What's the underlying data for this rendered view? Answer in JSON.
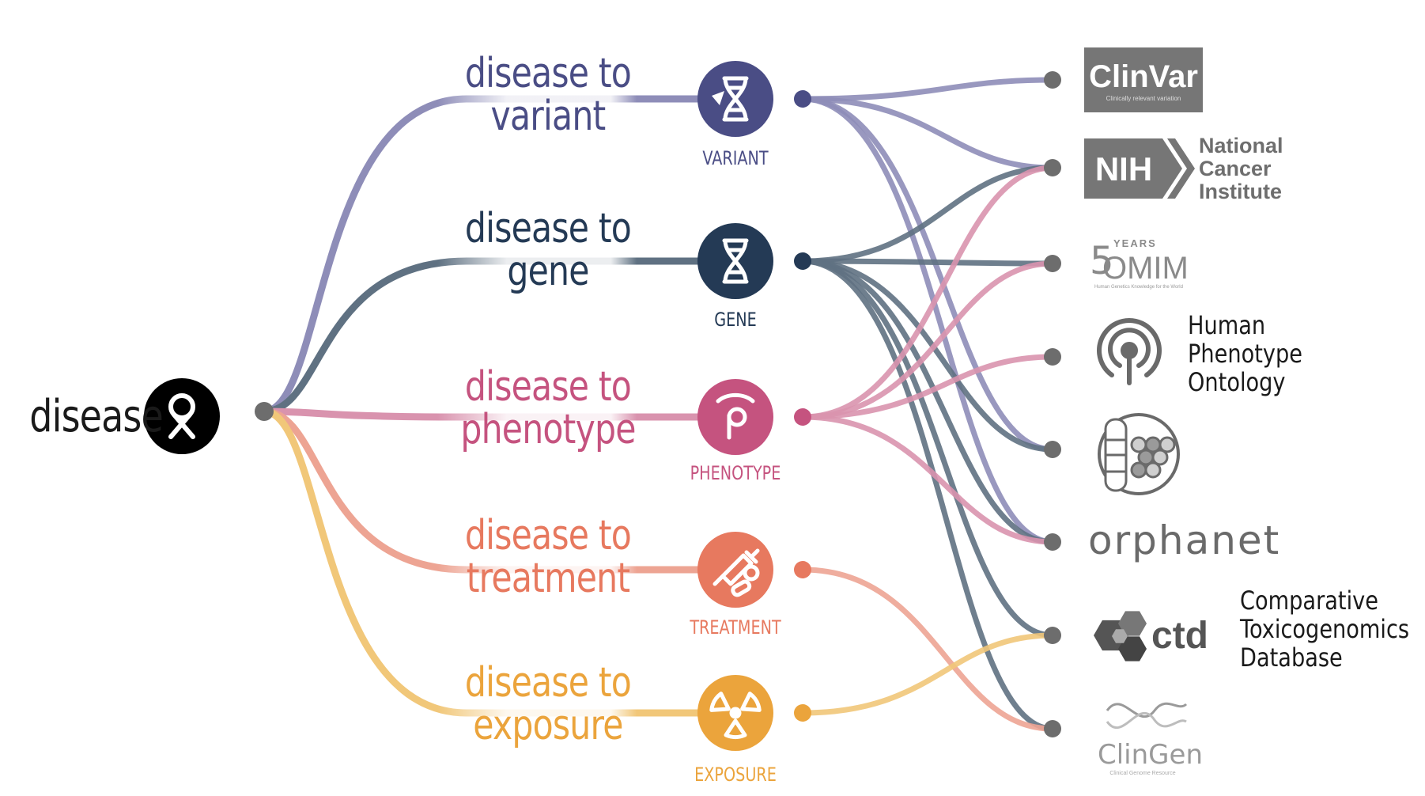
{
  "root": {
    "label": "disease",
    "icon": "awareness-ribbon-icon",
    "color": "#000000"
  },
  "categories": [
    {
      "key": "variant",
      "line1": "disease to",
      "line2": "variant",
      "sublabel": "VARIANT",
      "icon": "dna-cursor-icon",
      "color": "#4a4d85",
      "link_color": "#8e8db8"
    },
    {
      "key": "gene",
      "line1": "disease to",
      "line2": "gene",
      "sublabel": "GENE",
      "icon": "dna-icon",
      "color": "#243a55",
      "link_color": "#5f7182"
    },
    {
      "key": "phenotype",
      "line1": "disease to",
      "line2": "phenotype",
      "sublabel": "PHENOTYPE",
      "icon": "phenotype-icon",
      "color": "#c5537f",
      "link_color": "#d993ae"
    },
    {
      "key": "treatment",
      "line1": "disease to",
      "line2": "treatment",
      "sublabel": "TREATMENT",
      "icon": "syringe-pill-icon",
      "color": "#e7795f",
      "link_color": "#eda493"
    },
    {
      "key": "exposure",
      "line1": "disease to",
      "line2": "exposure",
      "sublabel": "EXPOSURE",
      "icon": "radiation-icon",
      "color": "#eba43c",
      "link_color": "#f1c779"
    }
  ],
  "sources": [
    {
      "key": "clinvar",
      "logo_text": "ClinVar",
      "logo_sub": "Clinically relevant variation",
      "icon": "clinvar-logo"
    },
    {
      "key": "nci",
      "logo_text": "NIH",
      "name_lines": [
        "National",
        "Cancer",
        "Institute"
      ],
      "icon": "nih-logo"
    },
    {
      "key": "omim",
      "logo_years": "YEARS",
      "logo_text": "OMIM",
      "logo_digit": "5",
      "logo_sub": "Human Genetics Knowledge for the World",
      "icon": "omim-logo"
    },
    {
      "key": "hpo",
      "name_lines": [
        "Human",
        "Phenotype",
        "Ontology"
      ],
      "icon": "hpo-logo"
    },
    {
      "key": "cell",
      "icon": "chromosome-cell-logo"
    },
    {
      "key": "orphanet",
      "logo_text": "orphanet",
      "icon": "orphanet-logo"
    },
    {
      "key": "ctd",
      "logo_text": "ctd",
      "name_lines": [
        "Comparative",
        "Toxicogenomics",
        "Database"
      ],
      "icon": "ctd-logo"
    },
    {
      "key": "clingen",
      "logo_text": "ClinGen",
      "logo_sub": "Clinical Genome Resource",
      "icon": "clingen-logo"
    }
  ],
  "links": [
    {
      "from": "variant",
      "to": "clinvar"
    },
    {
      "from": "variant",
      "to": "nci"
    },
    {
      "from": "variant",
      "to": "cell"
    },
    {
      "from": "variant",
      "to": "orphanet"
    },
    {
      "from": "gene",
      "to": "nci"
    },
    {
      "from": "gene",
      "to": "omim"
    },
    {
      "from": "gene",
      "to": "cell"
    },
    {
      "from": "gene",
      "to": "orphanet"
    },
    {
      "from": "gene",
      "to": "ctd"
    },
    {
      "from": "gene",
      "to": "clingen"
    },
    {
      "from": "phenotype",
      "to": "nci"
    },
    {
      "from": "phenotype",
      "to": "omim"
    },
    {
      "from": "phenotype",
      "to": "hpo"
    },
    {
      "from": "phenotype",
      "to": "orphanet"
    },
    {
      "from": "treatment",
      "to": "clingen"
    },
    {
      "from": "exposure",
      "to": "ctd"
    }
  ],
  "colors": {
    "dot": "#6d6d6d",
    "gray_logo": "#767676",
    "text": "#1a1a1a"
  }
}
